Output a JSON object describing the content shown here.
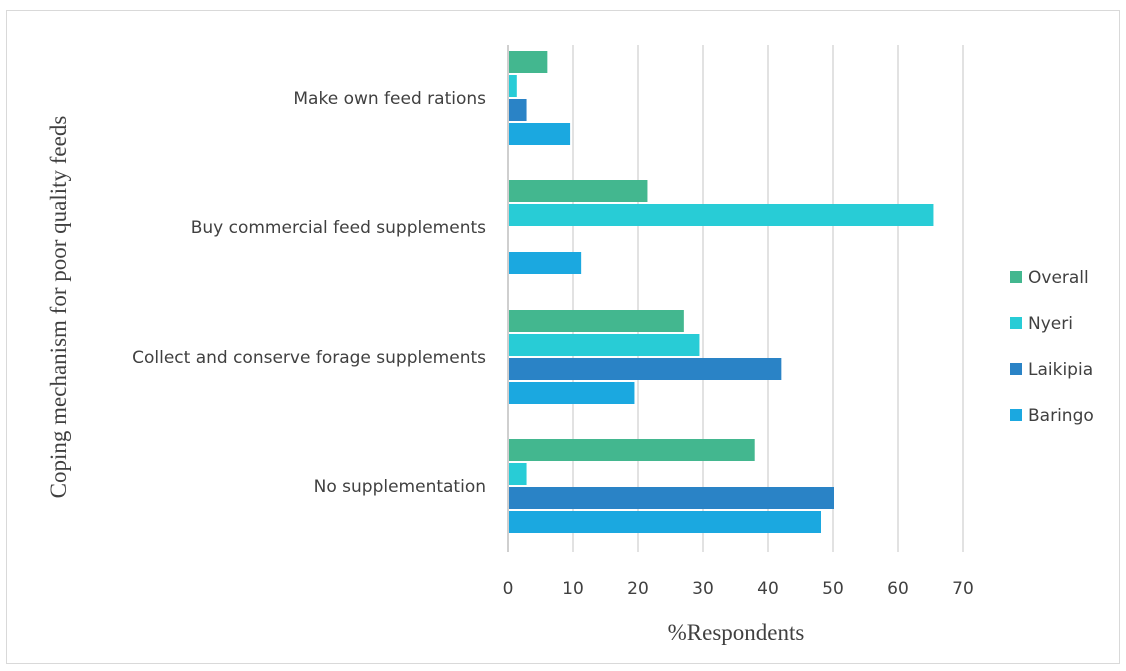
{
  "chart_data": {
    "type": "bar",
    "orientation": "horizontal",
    "title": "",
    "xlabel": "%Respondents",
    "ylabel": "Coping mechanism for poor quality feeds",
    "xlim": [
      0,
      70
    ],
    "xticks": [
      0,
      10,
      20,
      30,
      40,
      50,
      60,
      70
    ],
    "grid": true,
    "legend_position": "right",
    "categories": [
      "Make own feed rations",
      "Buy commercial feed supplements",
      "Collect and conserve forage supplements",
      "No supplementation"
    ],
    "series": [
      {
        "name": "Overall",
        "color": "#43b78f",
        "values": [
          5.9,
          21.3,
          26.9,
          37.8
        ]
      },
      {
        "name": "Nyeri",
        "color": "#28ccd6",
        "values": [
          1.2,
          65.3,
          29.3,
          2.7
        ]
      },
      {
        "name": "Laikipia",
        "color": "#2a83c6",
        "values": [
          2.7,
          0,
          41.9,
          50.0
        ]
      },
      {
        "name": "Baringo",
        "color": "#1ba8e0",
        "values": [
          9.4,
          11.1,
          19.3,
          48.0
        ]
      }
    ]
  }
}
